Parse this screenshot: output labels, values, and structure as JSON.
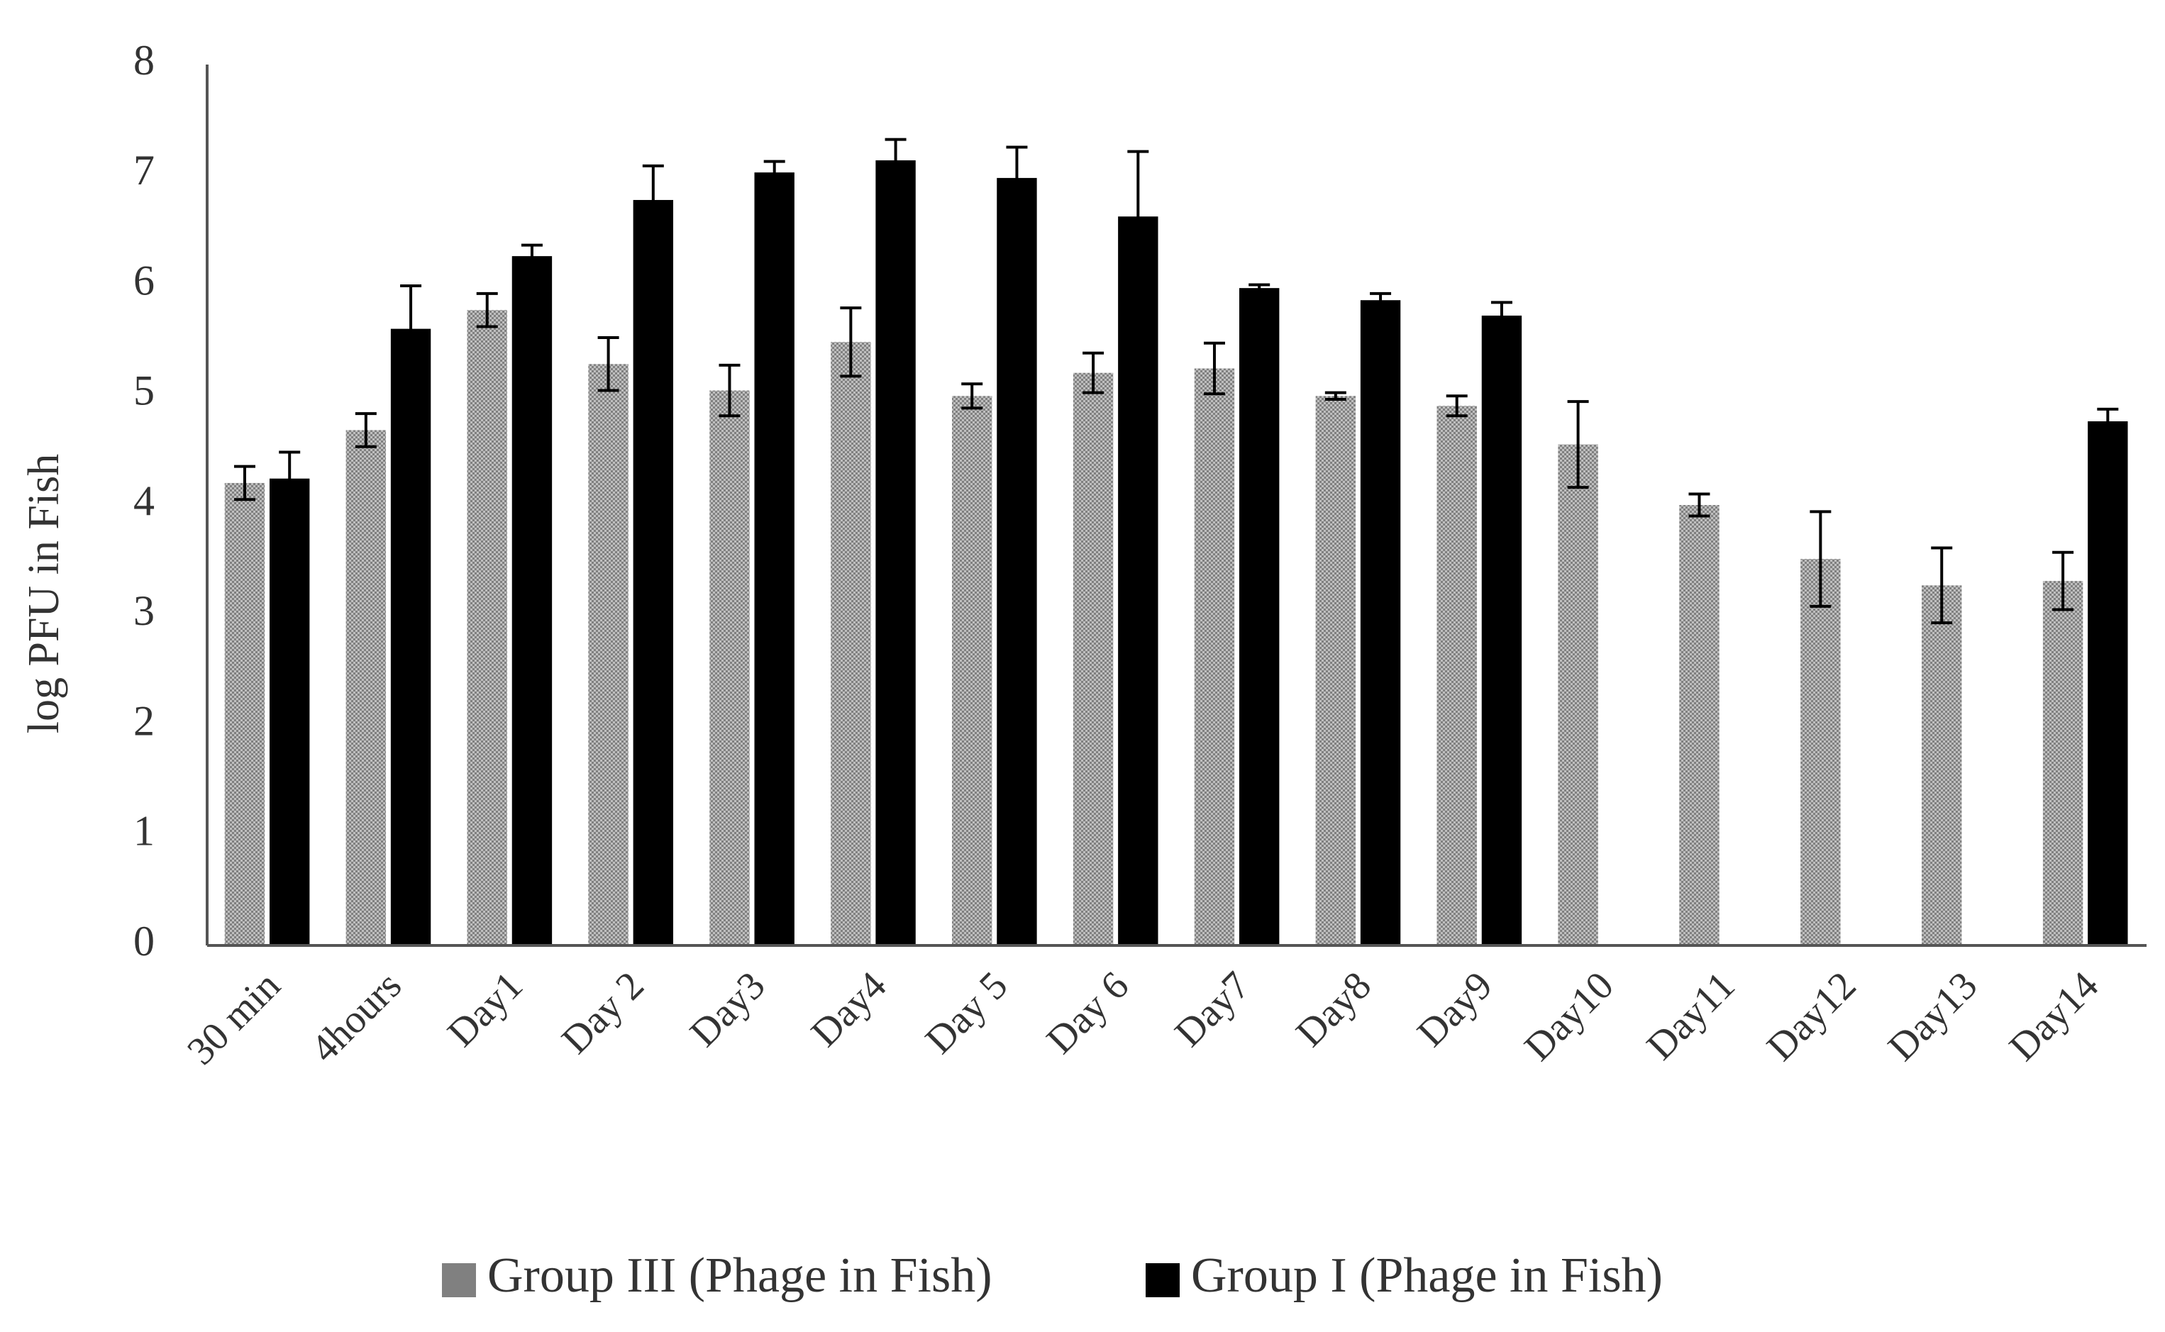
{
  "chart_data": {
    "type": "bar",
    "y_label": "log PFU in Fish",
    "categories": [
      "30 min",
      "4hours",
      "Day1",
      "Day 2",
      "Day3",
      "Day4",
      "Day 5",
      "Day 6",
      "Day7",
      "Day8",
      "Day9",
      "Day10",
      "Day11",
      "Day12",
      "Day13",
      "Day14"
    ],
    "series": [
      {
        "name": "Group III (Phage in Fish)",
        "color": "#808080",
        "pattern": "checker",
        "values": [
          4.2,
          4.68,
          5.77,
          5.28,
          5.04,
          5.48,
          4.99,
          5.2,
          5.24,
          4.99,
          4.9,
          4.55,
          4.0,
          3.51,
          3.27,
          3.31
        ],
        "errors": [
          0.15,
          0.15,
          0.15,
          0.24,
          0.23,
          0.31,
          0.11,
          0.18,
          0.23,
          0.03,
          0.09,
          0.39,
          0.1,
          0.43,
          0.34,
          0.26
        ]
      },
      {
        "name": "Group I (Phage in Fish)",
        "color": "#000000",
        "values": [
          4.24,
          5.6,
          6.26,
          6.77,
          7.02,
          7.13,
          6.97,
          6.62,
          5.97,
          5.86,
          5.72,
          null,
          null,
          null,
          null,
          4.76
        ],
        "errors": [
          0.24,
          0.39,
          0.1,
          0.31,
          0.1,
          0.19,
          0.28,
          0.59,
          0.03,
          0.06,
          0.12,
          null,
          null,
          null,
          null,
          0.11
        ]
      }
    ],
    "ylim": [
      0,
      8
    ],
    "yticks": [
      0,
      1,
      2,
      3,
      4,
      5,
      6,
      7,
      8
    ],
    "grid": false,
    "legend": "bottom"
  }
}
